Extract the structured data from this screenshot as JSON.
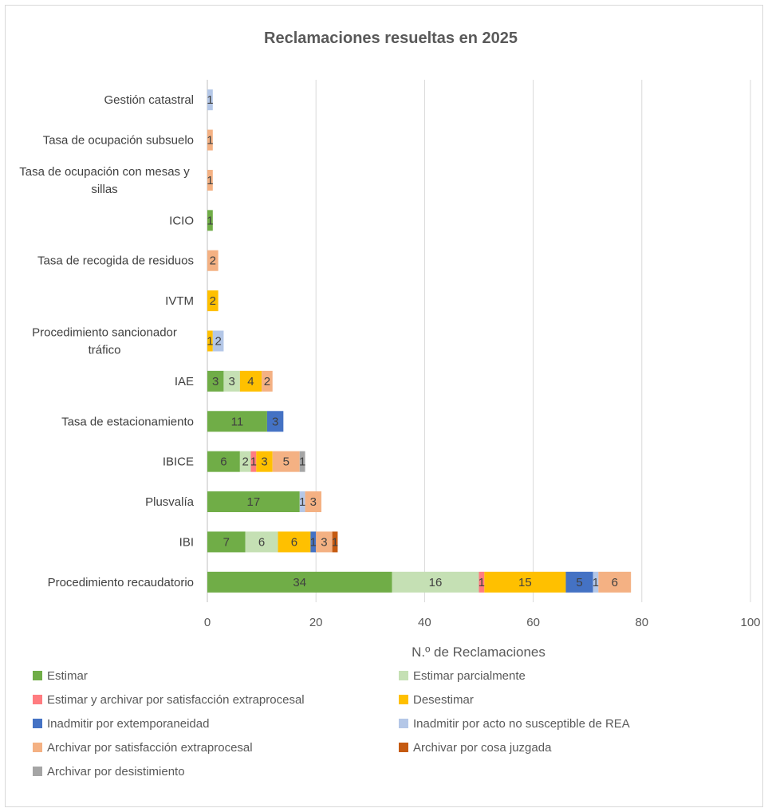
{
  "chart_data": {
    "type": "bar",
    "orientation": "horizontal",
    "stacked": true,
    "title": "Reclamaciones resueltas en 2025",
    "xlabel": "N.º de Reclamaciones",
    "ylabel": "",
    "xlim": [
      0,
      100
    ],
    "x_ticks": [
      "0",
      "20",
      "40",
      "60",
      "80",
      "100"
    ],
    "grid": "vertical",
    "legend_position": "bottom",
    "categories": [
      "Procedimiento recaudatorio",
      "IBI",
      "Plusvalía",
      "IBICE",
      "Tasa de estacionamiento",
      "IAE",
      "Procedimiento sancionador tráfico",
      "IVTM",
      "Tasa de recogida de residuos",
      "ICIO",
      "Tasa de ocupación con mesas y sillas",
      "Tasa de ocupación subsuelo",
      "Gestión catastral"
    ],
    "series": [
      {
        "name": "Estimar",
        "color": "#70ad47",
        "values": [
          34,
          7,
          17,
          6,
          11,
          3,
          0,
          0,
          0,
          1,
          0,
          0,
          0
        ]
      },
      {
        "name": "Estimar parcialmente",
        "color": "#c5e0b4",
        "values": [
          16,
          6,
          0,
          2,
          0,
          3,
          0,
          0,
          0,
          0,
          0,
          0,
          0
        ]
      },
      {
        "name": "Estimar y archivar por satisfacción extraprocesal",
        "color": "#ff7c80",
        "values": [
          1,
          0,
          0,
          1,
          0,
          0,
          0,
          0,
          0,
          0,
          0,
          0,
          0
        ]
      },
      {
        "name": "Desestimar",
        "color": "#ffc000",
        "values": [
          15,
          6,
          0,
          3,
          0,
          4,
          1,
          2,
          0,
          0,
          0,
          0,
          0
        ]
      },
      {
        "name": "Inadmitir por extemporaneidad",
        "color": "#4472c4",
        "values": [
          5,
          1,
          0,
          0,
          3,
          0,
          0,
          0,
          0,
          0,
          0,
          0,
          0
        ]
      },
      {
        "name": "Inadmitir por acto no susceptible de REA",
        "color": "#b4c7e7",
        "values": [
          1,
          0,
          1,
          0,
          0,
          0,
          2,
          0,
          0,
          0,
          0,
          0,
          1
        ]
      },
      {
        "name": "Archivar por satisfacción extraprocesal",
        "color": "#f4b183",
        "values": [
          6,
          3,
          3,
          5,
          0,
          2,
          0,
          0,
          2,
          0,
          1,
          1,
          0
        ]
      },
      {
        "name": "Archivar por cosa juzgada",
        "color": "#c55a11",
        "values": [
          0,
          1,
          0,
          0,
          0,
          0,
          0,
          0,
          0,
          0,
          0,
          0,
          0
        ]
      },
      {
        "name": "Archivar por desistimiento",
        "color": "#a5a5a5",
        "values": [
          0,
          0,
          0,
          1,
          0,
          0,
          0,
          0,
          0,
          0,
          0,
          0,
          0
        ]
      }
    ],
    "extra_segment_labels": [
      {
        "category": "Plusvalía",
        "after_series": "Inadmitir por acto no susceptible de REA",
        "label": "3"
      }
    ]
  }
}
